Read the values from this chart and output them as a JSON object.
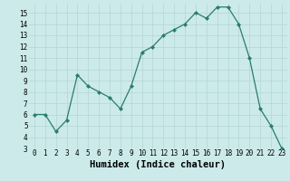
{
  "x": [
    0,
    1,
    2,
    3,
    4,
    5,
    6,
    7,
    8,
    9,
    10,
    11,
    12,
    13,
    14,
    15,
    16,
    17,
    18,
    19,
    20,
    21,
    22,
    23
  ],
  "y": [
    6,
    6,
    4.5,
    5.5,
    9.5,
    8.5,
    8,
    7.5,
    6.5,
    8.5,
    11.5,
    12,
    13,
    13.5,
    14,
    15,
    14.5,
    15.5,
    15.5,
    14,
    11,
    6.5,
    5,
    3
  ],
  "xlabel": "Humidex (Indice chaleur)",
  "ylim": [
    3,
    15.8
  ],
  "xlim": [
    -0.5,
    23.5
  ],
  "yticks": [
    3,
    4,
    5,
    6,
    7,
    8,
    9,
    10,
    11,
    12,
    13,
    14,
    15
  ],
  "xticks": [
    0,
    1,
    2,
    3,
    4,
    5,
    6,
    7,
    8,
    9,
    10,
    11,
    12,
    13,
    14,
    15,
    16,
    17,
    18,
    19,
    20,
    21,
    22,
    23
  ],
  "line_color": "#2a7d6e",
  "bg_color": "#cceaea",
  "grid_color": "#b8d8d8",
  "tick_label_fontsize": 5.5,
  "xlabel_fontsize": 7.5
}
